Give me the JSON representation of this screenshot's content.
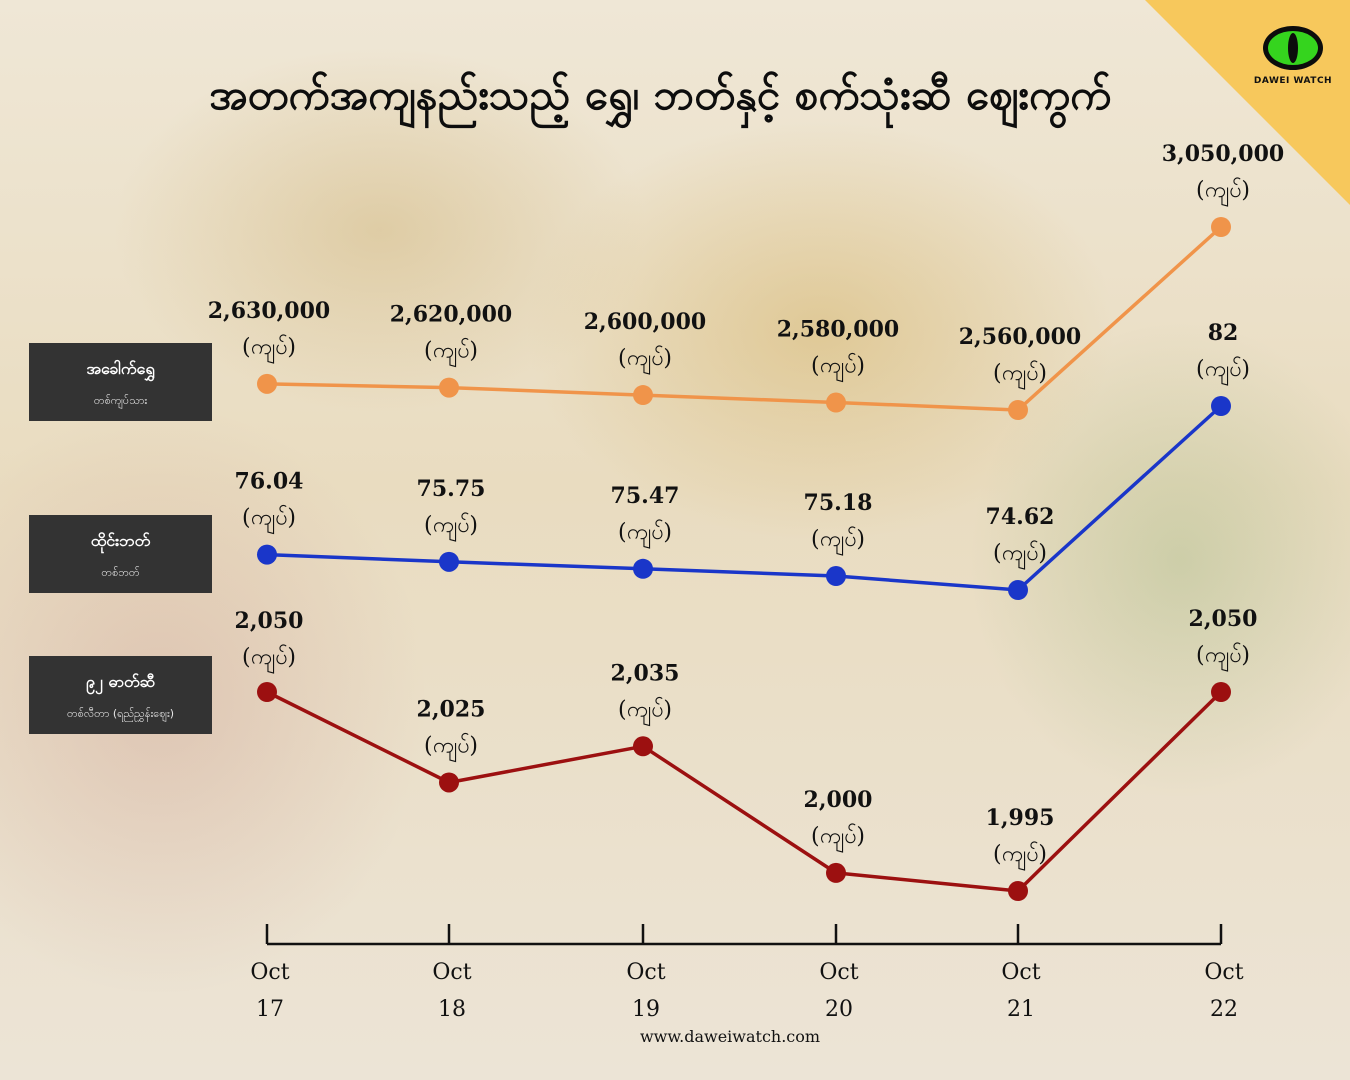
{
  "title": "အတက်အကျနည်းသည့် ရွှေ၊ ဘတ်နှင့် စက်သုံးဆီ ဈေးကွက်",
  "logo": {
    "text": "DAWEI WATCH",
    "icon": "green-eye-icon"
  },
  "footer": "www.daweiwatch.com",
  "unit_label": "(ကျပ်)",
  "series_labels": [
    {
      "name": "အခေါက်ရွှေ",
      "sub": "တစ်ကျပ်သား"
    },
    {
      "name": "ထိုင်းဘတ်",
      "sub": "တစ်ဘတ်"
    },
    {
      "name": "၉၂ ဓာတ်ဆီ",
      "sub": "တစ်လီတာ (ရည်ညွှန်းဈေး)"
    }
  ],
  "colors": {
    "gold": "#f0944a",
    "baht": "#1a36c9",
    "fuel": "#9c1010",
    "axis": "#111111",
    "label_bg": "#333333"
  },
  "chart_data": {
    "type": "line",
    "categories": [
      [
        "Oct",
        "17"
      ],
      [
        "Oct",
        "18"
      ],
      [
        "Oct",
        "19"
      ],
      [
        "Oct",
        "20"
      ],
      [
        "Oct",
        "21"
      ],
      [
        "Oct",
        "22"
      ]
    ],
    "series": [
      {
        "name": "အခေါက်ရွှေ",
        "values": [
          2630000,
          2620000,
          2600000,
          2580000,
          2560000,
          3050000
        ],
        "labels": [
          "2,630,000",
          "2,620,000",
          "2,600,000",
          "2,580,000",
          "2,560,000",
          "3,050,000"
        ]
      },
      {
        "name": "ထိုင်းဘတ်",
        "values": [
          76.04,
          75.75,
          75.47,
          75.18,
          74.62,
          82
        ],
        "labels": [
          "76.04",
          "75.75",
          "75.47",
          "75.18",
          "74.62",
          "82"
        ]
      },
      {
        "name": "၉၂ ဓာတ်ဆီ",
        "values": [
          2050,
          2025,
          2035,
          2000,
          1995,
          2050
        ],
        "labels": [
          "2,050",
          "2,025",
          "2,035",
          "2,000",
          "1,995",
          "2,050"
        ]
      }
    ]
  }
}
